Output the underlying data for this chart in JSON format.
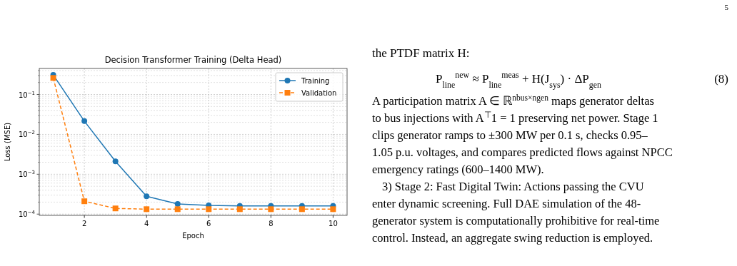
{
  "chart_data": {
    "type": "line",
    "title": "Decision Transformer Training (Delta Head)",
    "xlabel": "Epoch",
    "ylabel": "Loss (MSE)",
    "x": [
      1,
      2,
      3,
      4,
      5,
      6,
      7,
      8,
      9,
      10
    ],
    "series": [
      {
        "name": "Training",
        "color": "#1f77b4",
        "marker": "circle",
        "line_style": "solid",
        "values": [
          0.31,
          0.0215,
          0.0021,
          0.00028,
          0.00018,
          0.000165,
          0.00016,
          0.00016,
          0.00016,
          0.00016
        ]
      },
      {
        "name": "Validation",
        "color": "#ff7f0e",
        "marker": "square",
        "line_style": "dashed",
        "values": [
          0.26,
          0.00021,
          0.000139,
          0.000133,
          0.000133,
          0.000133,
          0.000133,
          0.000133,
          0.000133,
          0.000133
        ]
      }
    ],
    "log": "y",
    "xlim": [
      0.55,
      10.45
    ],
    "ylim": [
      9.3e-05,
      0.45
    ],
    "xticks": [
      2,
      4,
      6,
      8,
      10
    ],
    "yticks": [
      {
        "value": 0.0001,
        "label": "10$^{−4}$"
      },
      {
        "value": 0.0002,
        "label": null
      },
      {
        "value": 0.0003,
        "label": null
      },
      {
        "value": 0.0004,
        "label": null
      },
      {
        "value": 0.0005,
        "label": null
      },
      {
        "value": 0.0006,
        "label": null
      },
      {
        "value": 0.0007,
        "label": null
      },
      {
        "value": 0.0008,
        "label": null
      },
      {
        "value": 0.0009,
        "label": null
      },
      {
        "value": 0.001,
        "label": "10$^{−3}$"
      },
      {
        "value": 0.002,
        "label": null
      },
      {
        "value": 0.003,
        "label": null
      },
      {
        "value": 0.004,
        "label": null
      },
      {
        "value": 0.005,
        "label": null
      },
      {
        "value": 0.006,
        "label": null
      },
      {
        "value": 0.007,
        "label": null
      },
      {
        "value": 0.008,
        "label": null
      },
      {
        "value": 0.009,
        "label": null
      },
      {
        "value": 0.01,
        "label": "10$^{−2}$"
      },
      {
        "value": 0.02,
        "label": null
      },
      {
        "value": 0.03,
        "label": null
      },
      {
        "value": 0.04,
        "label": null
      },
      {
        "value": 0.05,
        "label": null
      },
      {
        "value": 0.06,
        "label": null
      },
      {
        "value": 0.07,
        "label": null
      },
      {
        "value": 0.08,
        "label": null
      },
      {
        "value": 0.09,
        "label": null
      },
      {
        "value": 0.1,
        "label": "10$^{−1}$"
      },
      {
        "value": 0.2,
        "label": null
      },
      {
        "value": 0.3,
        "label": null
      },
      {
        "value": 0.4,
        "label": null
      }
    ],
    "grid": true,
    "legend": "top right",
    "annotations": [
      "5",
      "the PTDF matrix H:",
      "P$_{line}$$^{new}$ ≈ P$_{line}$$^{meas}$ + H(J$_{sys}$) · ΔP$_{gen}$",
      "(8)",
      "A participation matrix A ∈ ℝ$^{nbus×ngen}$ maps generator deltas",
      "to bus injections with A$^{⊤}$1 = 1 preserving net power. Stage 1",
      "clips generator ramps to ±300 MW per 0.1 s, checks 0.95–",
      "1.05 p.u. voltages, and compares predicted flows against NPCC",
      "emergency ratings (600–1400 MW).",
      "3) Stage 2: Fast Digital Twin: Actions passing the CVU",
      "enter dynamic screening. Full DAE simulation of the 48-",
      "generator system is computationally prohibitive for real-time",
      "control. Instead, an aggregate swing reduction is employed."
    ]
  }
}
